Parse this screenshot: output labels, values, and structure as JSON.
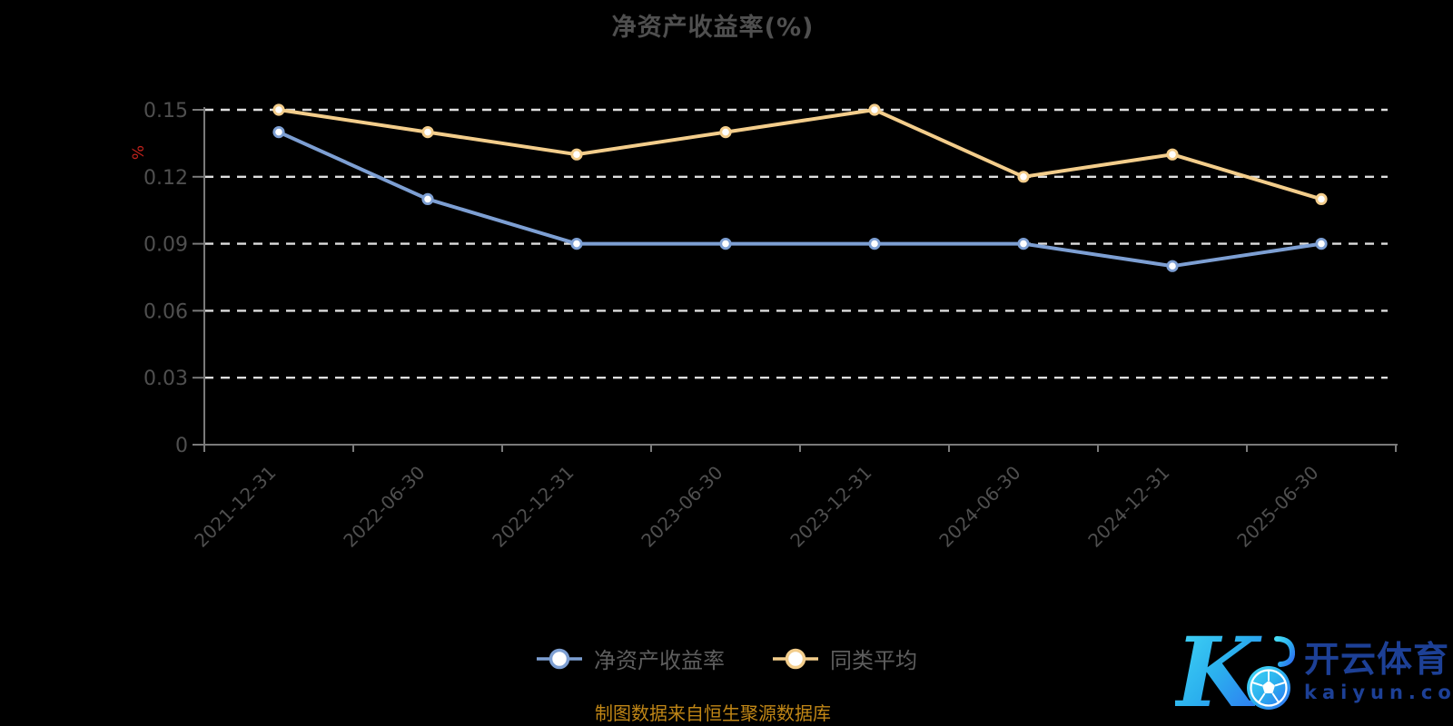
{
  "chart": {
    "title": "净资产收益率(%)",
    "y_unit": "%",
    "source_note": "制图数据来自恒生聚源数据库"
  },
  "chart_data": {
    "type": "line",
    "categories": [
      "2021-12-31",
      "2022-06-30",
      "2022-12-31",
      "2023-06-30",
      "2023-12-31",
      "2024-06-30",
      "2024-12-31",
      "2025-06-30"
    ],
    "series": [
      {
        "name": "净资产收益率",
        "color": "#7d9fd3",
        "values": [
          0.14,
          0.11,
          0.09,
          0.09,
          0.09,
          0.09,
          0.08,
          0.09
        ]
      },
      {
        "name": "同类平均",
        "color": "#f3cd8b",
        "values": [
          0.15,
          0.14,
          0.13,
          0.14,
          0.15,
          0.12,
          0.13,
          0.11
        ]
      }
    ],
    "title": "净资产收益率(%)",
    "xlabel": "",
    "ylabel": "%",
    "ylim": [
      0,
      0.15
    ],
    "yticks": [
      0,
      0.03,
      0.06,
      0.09,
      0.12,
      0.15
    ],
    "ytick_labels": [
      "0",
      "0.03",
      "0.06",
      "0.09",
      "0.12",
      "0.15"
    ],
    "grid": "horizontal dashed white lines",
    "legend_position": "bottom",
    "marker": "circle, white fill, colored ring"
  },
  "watermark": {
    "monogram": "K",
    "brand": "开云体育",
    "domain": "kaiyun.com"
  },
  "colors": {
    "background": "#000000",
    "title_text": "#4f4f4f",
    "axis_line": "#7a7a7a",
    "axis_label": "#4f4f4f",
    "gridline": "#dedede",
    "unit_red": "#c2221c",
    "series_blue": "#7d9fd3",
    "series_yellow": "#f3cd8b",
    "footer_gold": "#c08616",
    "watermark_navy": "#1d4096",
    "watermark_gradient_start": "#45dcf6",
    "watermark_gradient_end": "#2f6cf2"
  }
}
